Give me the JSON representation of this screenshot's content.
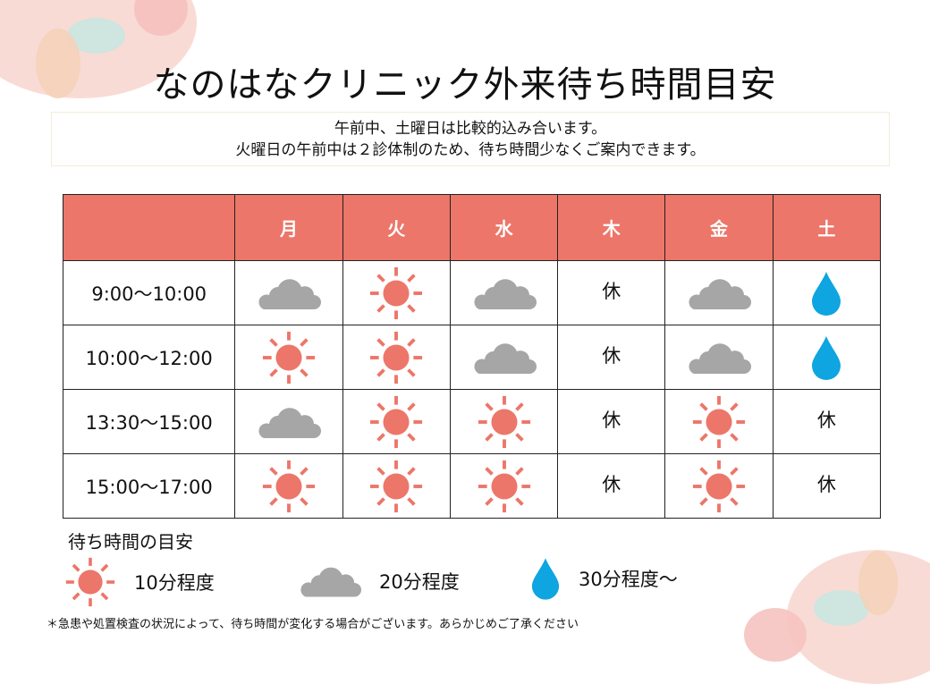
{
  "title": "なのはなクリニック外来待ち時間目安",
  "note": [
    "午前中、土曜日は比較的込み合います。",
    "火曜日の午前中は２診体制のため、待ち時間少なくご案内できます。"
  ],
  "days": [
    "月",
    "火",
    "水",
    "木",
    "金",
    "土"
  ],
  "rows": [
    {
      "time": "9:00〜10:00",
      "cells": [
        "cloud",
        "sun",
        "cloud",
        "休",
        "cloud",
        "drop"
      ]
    },
    {
      "time": "10:00〜12:00",
      "cells": [
        "sun",
        "sun",
        "cloud",
        "休",
        "cloud",
        "drop"
      ]
    },
    {
      "time": "13:30〜15:00",
      "cells": [
        "cloud",
        "sun",
        "sun",
        "休",
        "sun",
        "休"
      ]
    },
    {
      "time": "15:00〜17:00",
      "cells": [
        "sun",
        "sun",
        "sun",
        "休",
        "sun",
        "休"
      ]
    }
  ],
  "legend": {
    "title": "待ち時間の目安",
    "sun": "10分程度",
    "cloud": "20分程度",
    "drop": "30分程度〜"
  },
  "footnote": "＊急患や処置検査の状況によって、待ち時間が変化する場合がございます。あらかじめご了承ください",
  "colors": {
    "header": "#ec7669",
    "sun": "#ec7669",
    "cloud": "#a6a6a6",
    "drop": "#0ea5e0"
  }
}
